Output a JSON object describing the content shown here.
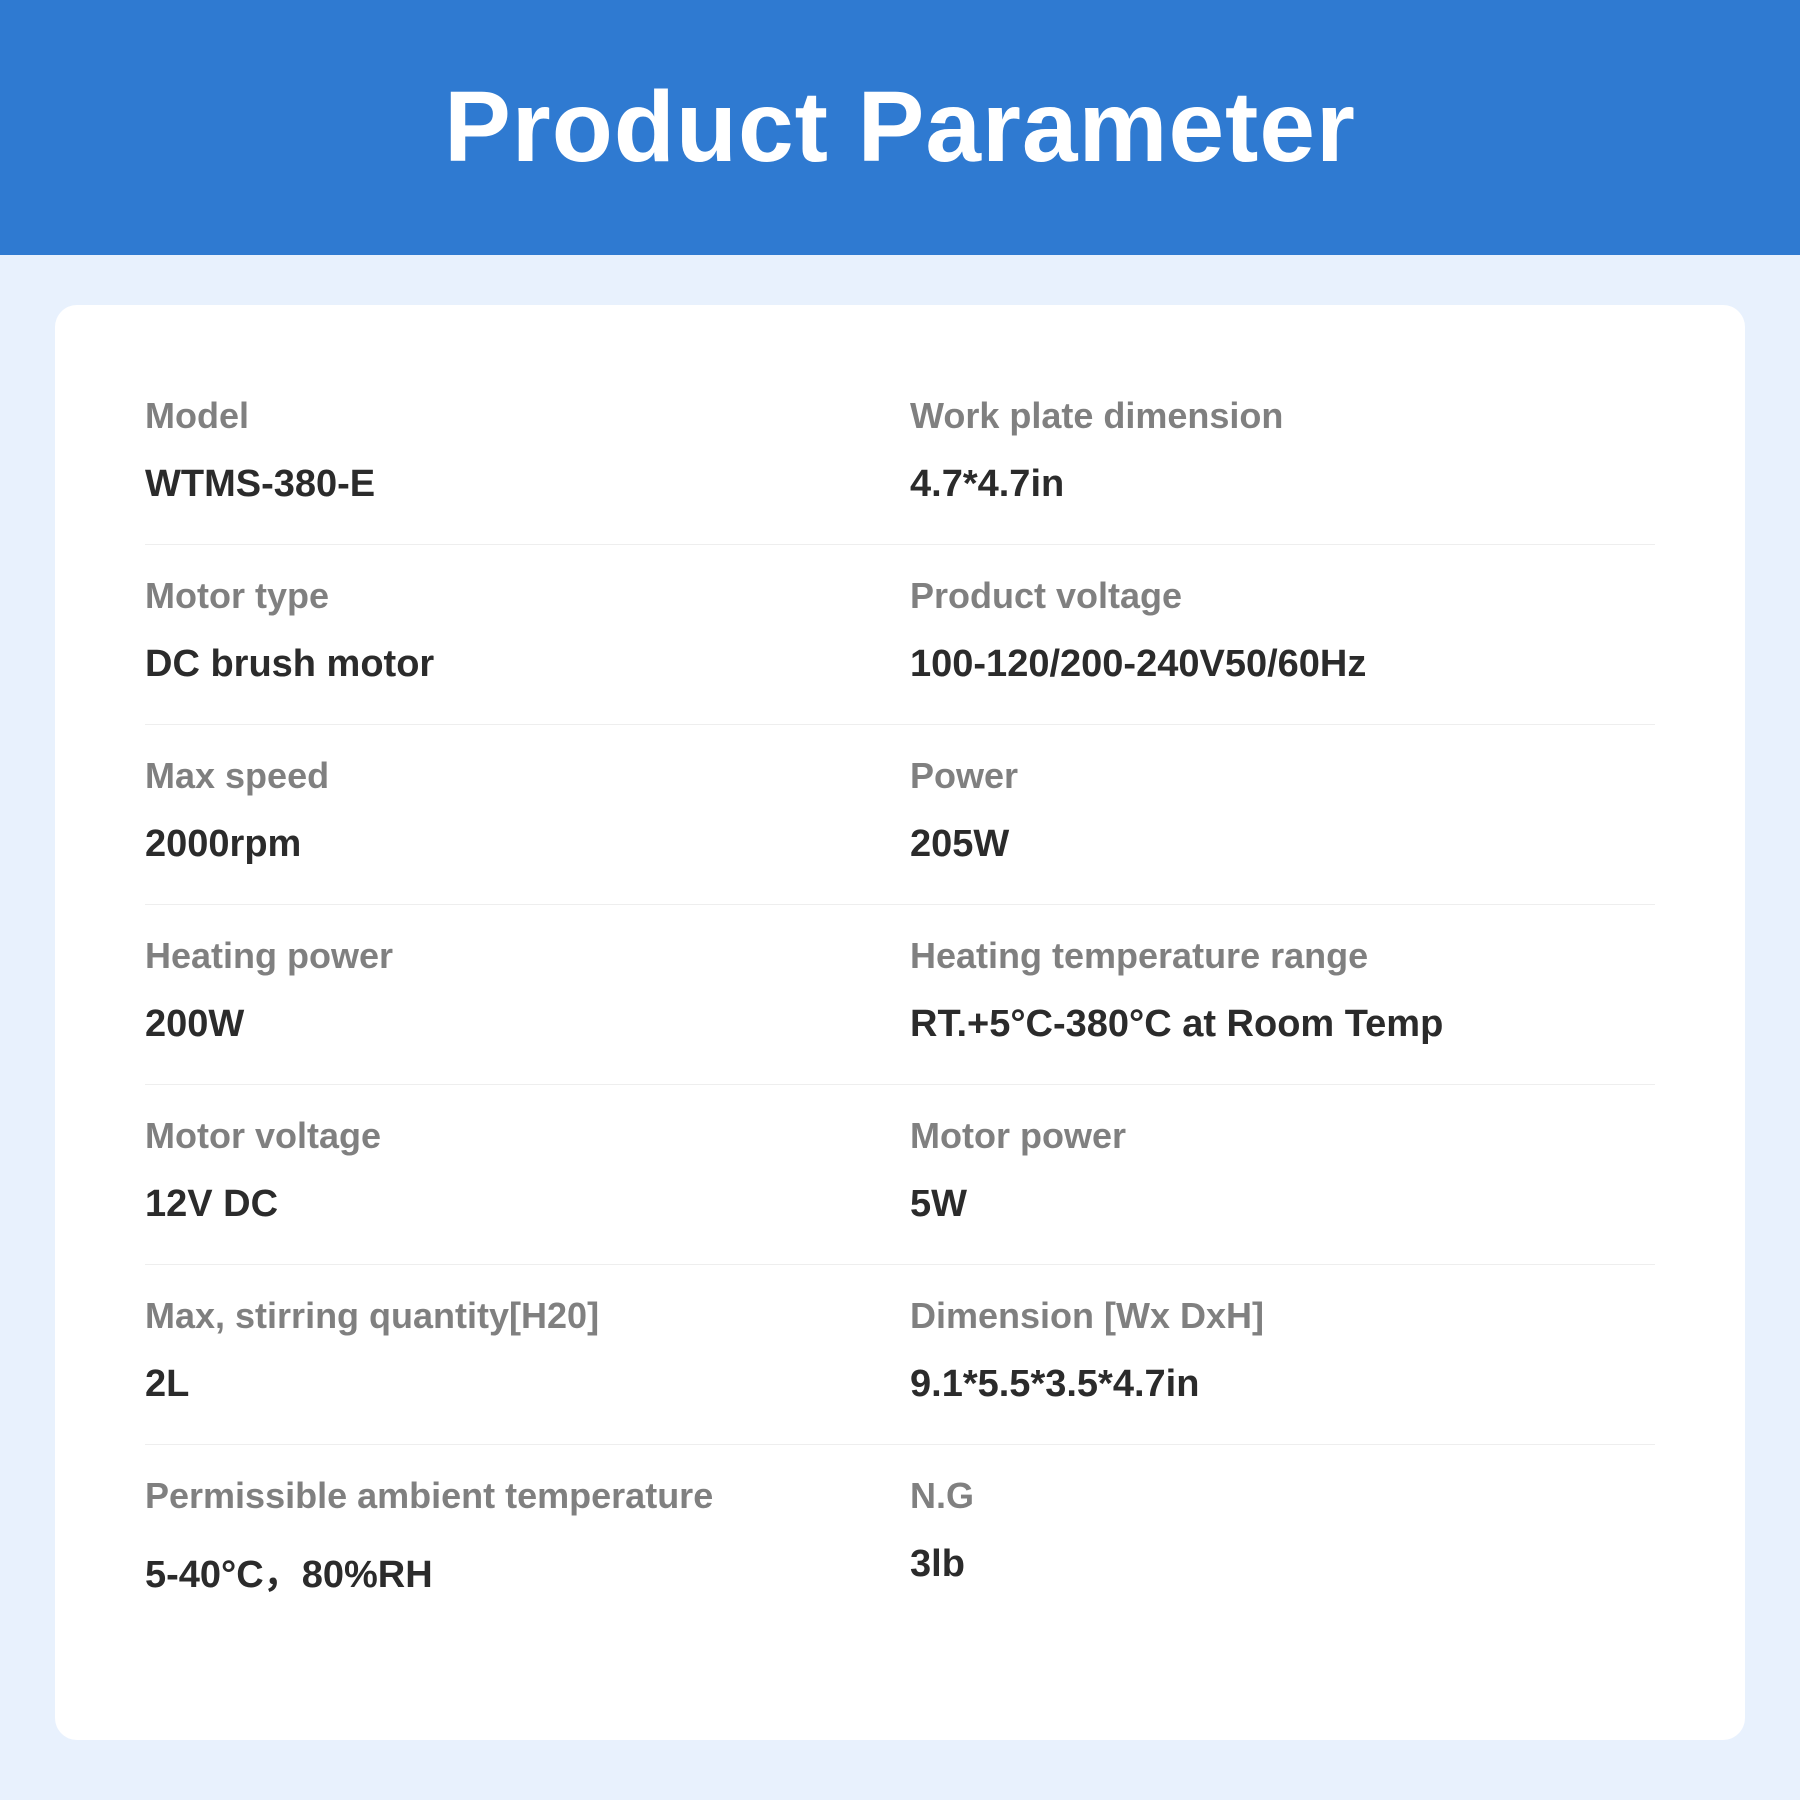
{
  "header": {
    "title": "Product Parameter"
  },
  "style": {
    "header_bg": "#2f7ad1",
    "header_text_color": "#ffffff",
    "header_fontsize": 100,
    "page_bg": "#e8f1fd",
    "card_bg": "#ffffff",
    "card_radius": 22,
    "label_color": "#808080",
    "label_fontsize": 36,
    "value_color": "#2b2b2b",
    "value_fontsize": 38,
    "divider_color": "#eeeeee"
  },
  "rows": [
    {
      "left": {
        "label": "Model",
        "value": "WTMS-380-E"
      },
      "right": {
        "label": "Work plate dimension",
        "value": "4.7*4.7in"
      }
    },
    {
      "left": {
        "label": "Motor type",
        "value": "DC brush motor"
      },
      "right": {
        "label": "Product voltage",
        "value": "100-120/200-240V50/60Hz"
      }
    },
    {
      "left": {
        "label": "Max speed",
        "value": "2000rpm"
      },
      "right": {
        "label": "Power",
        "value": "205W"
      }
    },
    {
      "left": {
        "label": "Heating power",
        "value": "200W"
      },
      "right": {
        "label": "Heating temperature range",
        "value": "RT.+5°C-380°C at Room Temp"
      }
    },
    {
      "left": {
        "label": "Motor voltage",
        "value": "12V DC"
      },
      "right": {
        "label": "Motor power",
        "value": "5W"
      }
    },
    {
      "left": {
        "label": "Max, stirring quantity[H20]",
        "value": "2L"
      },
      "right": {
        "label": "Dimension [Wx DxH]",
        "value": "9.1*5.5*3.5*4.7in"
      }
    },
    {
      "left": {
        "label": "Permissible ambient temperature",
        "value": "5-40°C，80%RH"
      },
      "right": {
        "label": "N.G",
        "value": "3lb"
      }
    }
  ]
}
